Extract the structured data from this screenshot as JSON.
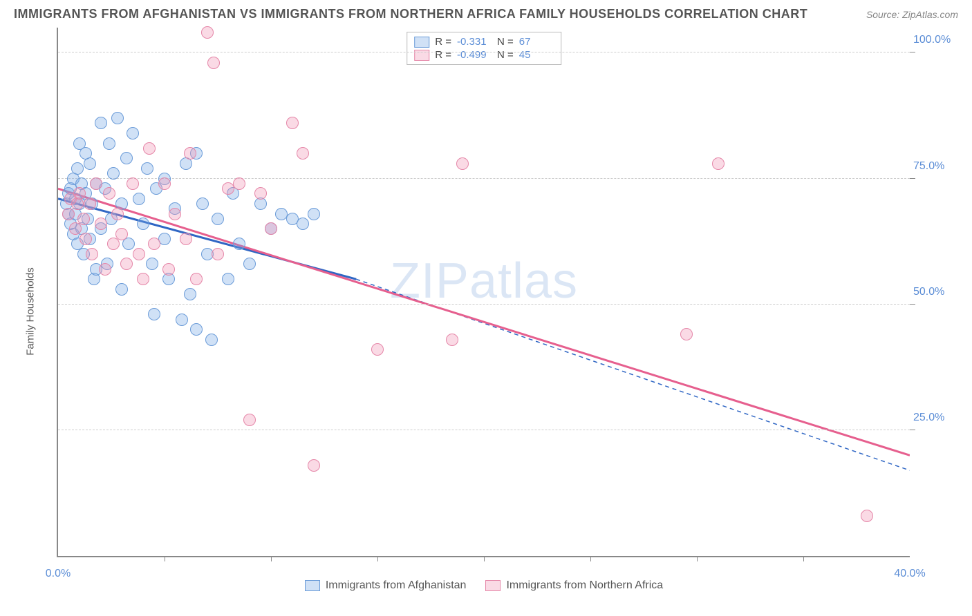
{
  "title": "IMMIGRANTS FROM AFGHANISTAN VS IMMIGRANTS FROM NORTHERN AFRICA FAMILY HOUSEHOLDS CORRELATION CHART",
  "source": "Source: ZipAtlas.com",
  "watermark": "ZIPatlas",
  "chart": {
    "type": "scatter",
    "ylabel": "Family Households",
    "xlim": [
      0,
      40
    ],
    "ylim": [
      0,
      105
    ],
    "xtick_labels": [
      "0.0%",
      "40.0%"
    ],
    "xtick_positions": [
      0,
      40
    ],
    "xtick_minor": [
      5,
      10,
      15,
      20,
      25,
      30,
      35
    ],
    "ytick_labels": [
      "25.0%",
      "50.0%",
      "75.0%",
      "100.0%"
    ],
    "ytick_positions": [
      25,
      50,
      75,
      100
    ],
    "grid_color": "#cccccc",
    "background_color": "#ffffff",
    "axis_color": "#888888",
    "marker_radius": 9,
    "marker_border": 1.5,
    "series": [
      {
        "name": "Immigrants from Afghanistan",
        "color_fill": "rgba(120,170,230,0.35)",
        "color_stroke": "#6a9bd8",
        "line_color": "#2f66c4",
        "R": "-0.331",
        "N": "67",
        "trend": {
          "x1": 0,
          "y1": 71,
          "x2": 14,
          "y2": 55,
          "dash_x2": 40,
          "dash_y2": 17
        },
        "points": [
          [
            0.4,
            70
          ],
          [
            0.5,
            72
          ],
          [
            0.5,
            68
          ],
          [
            0.6,
            66
          ],
          [
            0.6,
            73
          ],
          [
            0.7,
            75
          ],
          [
            0.7,
            64
          ],
          [
            0.8,
            71
          ],
          [
            0.8,
            68
          ],
          [
            0.9,
            77
          ],
          [
            0.9,
            62
          ],
          [
            1.0,
            70
          ],
          [
            1.0,
            82
          ],
          [
            1.1,
            65
          ],
          [
            1.1,
            74
          ],
          [
            1.2,
            60
          ],
          [
            1.3,
            72
          ],
          [
            1.3,
            80
          ],
          [
            1.4,
            67
          ],
          [
            1.5,
            63
          ],
          [
            1.5,
            78
          ],
          [
            1.6,
            70
          ],
          [
            1.7,
            55
          ],
          [
            1.8,
            74
          ],
          [
            1.8,
            57
          ],
          [
            2.0,
            86
          ],
          [
            2.0,
            65
          ],
          [
            2.2,
            73
          ],
          [
            2.3,
            58
          ],
          [
            2.4,
            82
          ],
          [
            2.5,
            67
          ],
          [
            2.6,
            76
          ],
          [
            2.8,
            87
          ],
          [
            3.0,
            70
          ],
          [
            3.0,
            53
          ],
          [
            3.2,
            79
          ],
          [
            3.3,
            62
          ],
          [
            3.5,
            84
          ],
          [
            3.8,
            71
          ],
          [
            4.0,
            66
          ],
          [
            4.2,
            77
          ],
          [
            4.4,
            58
          ],
          [
            4.5,
            48
          ],
          [
            4.6,
            73
          ],
          [
            5.0,
            63
          ],
          [
            5.0,
            75
          ],
          [
            5.2,
            55
          ],
          [
            5.5,
            69
          ],
          [
            5.8,
            47
          ],
          [
            6.0,
            78
          ],
          [
            6.2,
            52
          ],
          [
            6.5,
            45
          ],
          [
            6.8,
            70
          ],
          [
            7.0,
            60
          ],
          [
            7.2,
            43
          ],
          [
            7.5,
            67
          ],
          [
            8.0,
            55
          ],
          [
            8.2,
            72
          ],
          [
            8.5,
            62
          ],
          [
            9.0,
            58
          ],
          [
            9.5,
            70
          ],
          [
            10.0,
            65
          ],
          [
            10.5,
            68
          ],
          [
            11.0,
            67
          ],
          [
            11.5,
            66
          ],
          [
            12.0,
            68
          ],
          [
            6.5,
            80
          ]
        ]
      },
      {
        "name": "Immigrants from Northern Africa",
        "color_fill": "rgba(240,150,180,0.35)",
        "color_stroke": "#e586a8",
        "line_color": "#e65f8e",
        "R": "-0.499",
        "N": "45",
        "trend": {
          "x1": 0,
          "y1": 73,
          "x2": 40,
          "y2": 20
        },
        "points": [
          [
            0.5,
            68
          ],
          [
            0.6,
            71
          ],
          [
            0.8,
            65
          ],
          [
            0.9,
            70
          ],
          [
            1.0,
            72
          ],
          [
            1.2,
            67
          ],
          [
            1.3,
            63
          ],
          [
            1.5,
            70
          ],
          [
            1.6,
            60
          ],
          [
            1.8,
            74
          ],
          [
            2.0,
            66
          ],
          [
            2.2,
            57
          ],
          [
            2.4,
            72
          ],
          [
            2.6,
            62
          ],
          [
            2.8,
            68
          ],
          [
            3.0,
            64
          ],
          [
            3.2,
            58
          ],
          [
            3.5,
            74
          ],
          [
            3.8,
            60
          ],
          [
            4.0,
            55
          ],
          [
            4.3,
            81
          ],
          [
            4.5,
            62
          ],
          [
            5.0,
            74
          ],
          [
            5.2,
            57
          ],
          [
            5.5,
            68
          ],
          [
            6.0,
            63
          ],
          [
            6.2,
            80
          ],
          [
            6.5,
            55
          ],
          [
            7.0,
            104
          ],
          [
            7.3,
            98
          ],
          [
            7.5,
            60
          ],
          [
            8.0,
            73
          ],
          [
            8.5,
            74
          ],
          [
            9.0,
            27
          ],
          [
            9.5,
            72
          ],
          [
            10.0,
            65
          ],
          [
            11.0,
            86
          ],
          [
            11.5,
            80
          ],
          [
            12.0,
            18
          ],
          [
            15.0,
            41
          ],
          [
            18.5,
            43
          ],
          [
            19.0,
            78
          ],
          [
            29.5,
            44
          ],
          [
            31.0,
            78
          ],
          [
            38.0,
            8
          ]
        ]
      }
    ]
  },
  "legend_top": {
    "R_label": "R =",
    "N_label": "N ="
  }
}
